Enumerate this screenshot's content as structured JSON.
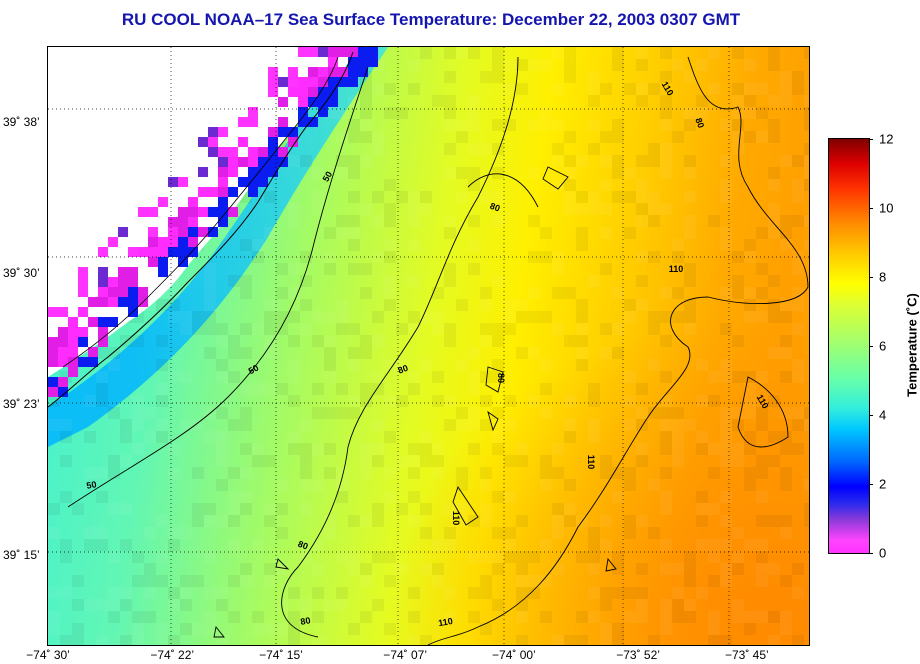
{
  "title": "RU COOL  NOAA–17  Sea Surface Temperature:  December 22, 2003 0307 GMT",
  "map": {
    "x_ticks": [
      {
        "label": "−74˚ 30’",
        "lon": -74.5
      },
      {
        "label": "−74˚ 22’",
        "lon": -74.3667
      },
      {
        "label": "−74˚ 15’",
        "lon": -74.25
      },
      {
        "label": "−74˚ 07’",
        "lon": -74.1167
      },
      {
        "label": "−74˚ 00’",
        "lon": -74.0
      },
      {
        "label": "−73˚ 52’",
        "lon": -73.8667
      },
      {
        "label": "−73˚ 45’",
        "lon": -73.75
      }
    ],
    "y_ticks": [
      {
        "label": "39˚ 38’",
        "lat": 39.6333
      },
      {
        "label": "39˚ 30’",
        "lat": 39.5
      },
      {
        "label": "39˚ 23’",
        "lat": 39.3833
      },
      {
        "label": "39˚ 15’",
        "lat": 39.25
      }
    ],
    "lon_range": [
      -74.5,
      -73.6833
    ],
    "lat_range": [
      39.17,
      39.7
    ],
    "contour_labels": [
      "50",
      "80",
      "110"
    ]
  },
  "colorbar": {
    "label": "Temperature (˚C)",
    "ticks": [
      0,
      2,
      4,
      6,
      8,
      10,
      12
    ],
    "range": [
      0,
      12
    ]
  },
  "colors": {
    "title": "#1515b0"
  }
}
